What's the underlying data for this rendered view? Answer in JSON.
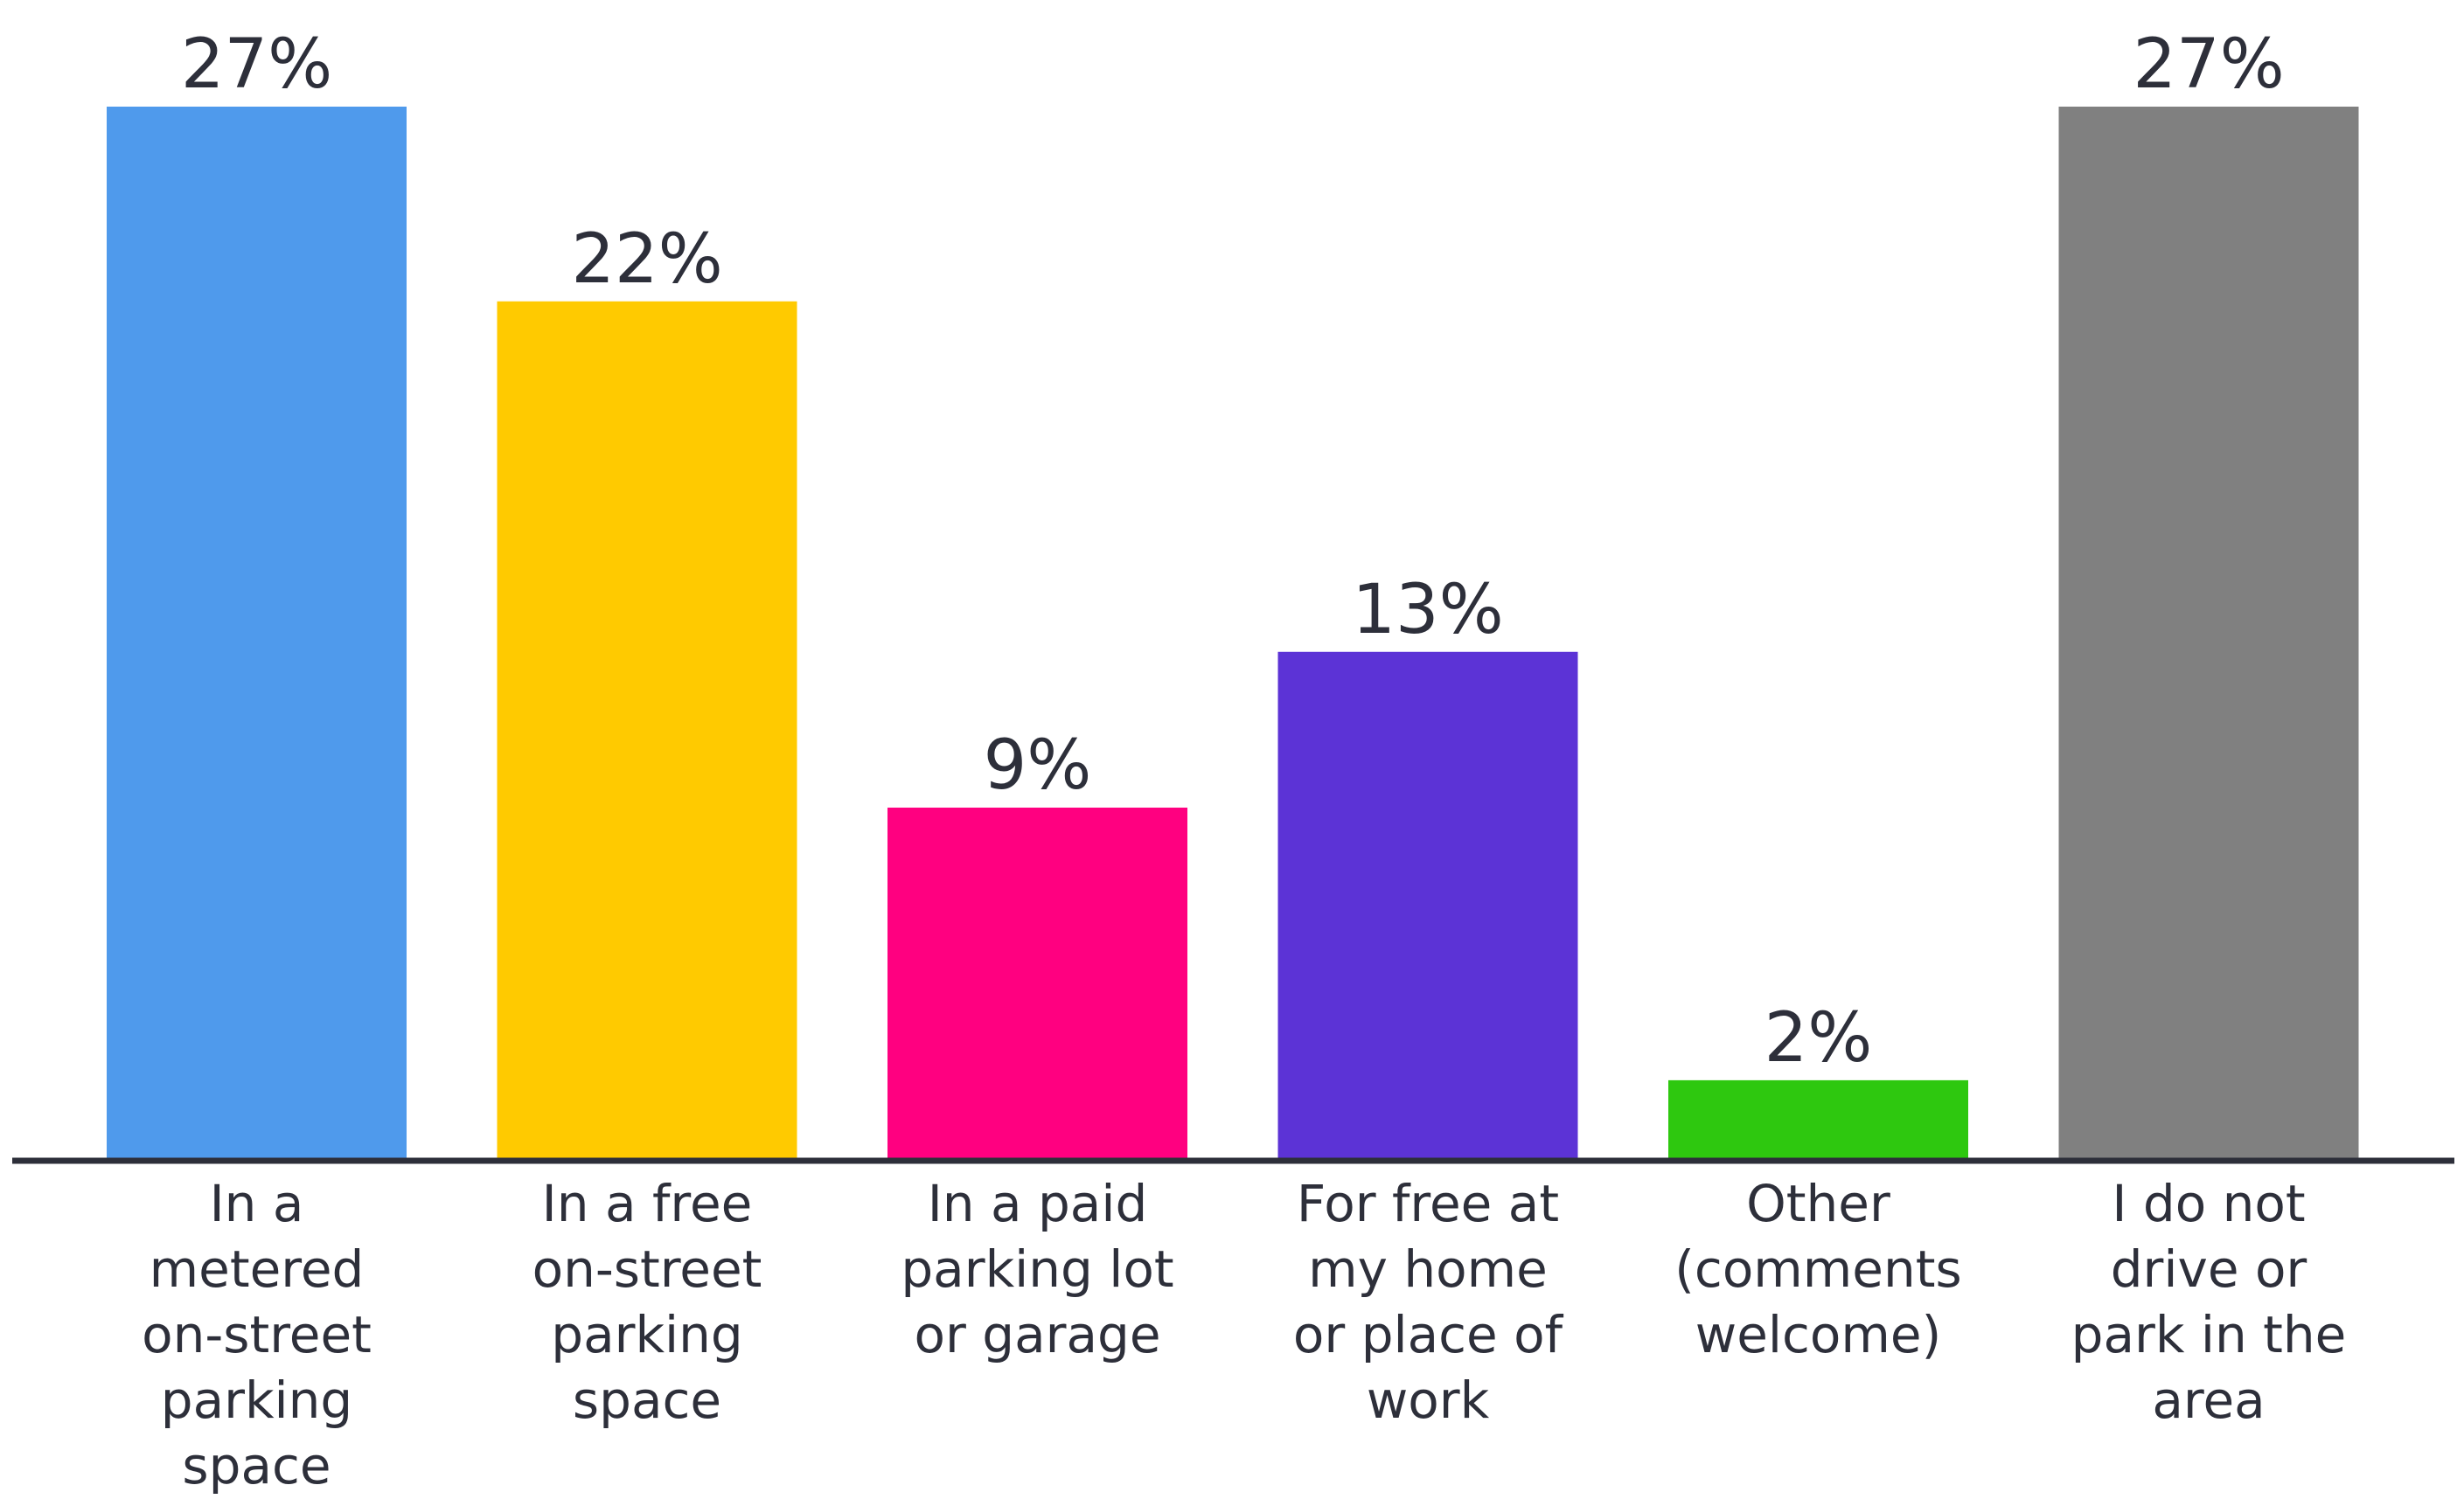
{
  "chart_data": {
    "type": "bar",
    "categories": [
      "In a metered on-street parking space",
      "In a free on-street parking space",
      "In a paid parking lot or garage",
      "For free at my home or place of work",
      "Other (comments welcome)",
      "I do not drive or park in the area"
    ],
    "values": [
      27,
      22,
      9,
      13,
      2,
      27
    ],
    "value_labels": [
      "27%",
      "22%",
      "9%",
      "13%",
      "2%",
      "27%"
    ],
    "colors": [
      "#4f9aec",
      "#ffca00",
      "#ff0080",
      "#5c33d6",
      "#2ec80f",
      "#808080"
    ]
  }
}
